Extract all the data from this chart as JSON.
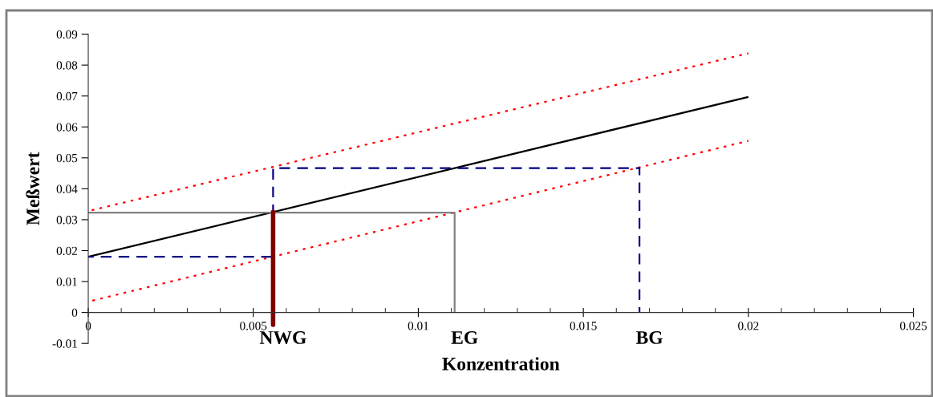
{
  "chart_data": {
    "type": "line",
    "xlabel": "Konzentration",
    "ylabel": "Meßwert",
    "xlim": [
      0,
      0.025
    ],
    "xticks": [
      0,
      0.005,
      0.01,
      0.015,
      0.02,
      0.025
    ],
    "ylim": [
      -0.01,
      0.09
    ],
    "yticks": [
      -0.01,
      0,
      0.01,
      0.02,
      0.03,
      0.04,
      0.05,
      0.06,
      0.07,
      0.08,
      0.09
    ],
    "grid": false,
    "marker": "none",
    "series": [
      {
        "color": "#000000",
        "line_style": "solid",
        "x": [
          0,
          0.02
        ],
        "values": [
          0.018,
          0.0697
        ]
      },
      {
        "color": "#ff0000",
        "line_style": "dotted",
        "x": [
          0,
          0.02
        ],
        "values": [
          0.0328,
          0.0838
        ]
      },
      {
        "color": "#ff0000",
        "line_style": "dotted",
        "x": [
          0,
          0.02
        ],
        "values": [
          0.0035,
          0.0555
        ]
      },
      {
        "color": "#808080",
        "line_style": "solid",
        "x": [
          0,
          0.0111,
          0.0111
        ],
        "values": [
          0.0323,
          0.0323,
          0
        ]
      },
      {
        "color": "#000080",
        "line_style": "dashed",
        "x": [
          0,
          0.0056,
          0.0056,
          0.0167,
          0.0167
        ],
        "values": [
          0.018,
          0.018,
          0.0467,
          0.0467,
          0
        ]
      },
      {
        "color": "#800000",
        "line_style": "solid",
        "x": [
          0.0056,
          0.0056
        ],
        "values": [
          0.0325,
          -0.004
        ]
      }
    ],
    "annotations": [
      {
        "text": "NWG",
        "x": 0.0056,
        "y": 0
      },
      {
        "text": "EG",
        "x": 0.0111,
        "y": 0
      },
      {
        "text": "BG",
        "x": 0.0167,
        "y": 0
      }
    ]
  }
}
